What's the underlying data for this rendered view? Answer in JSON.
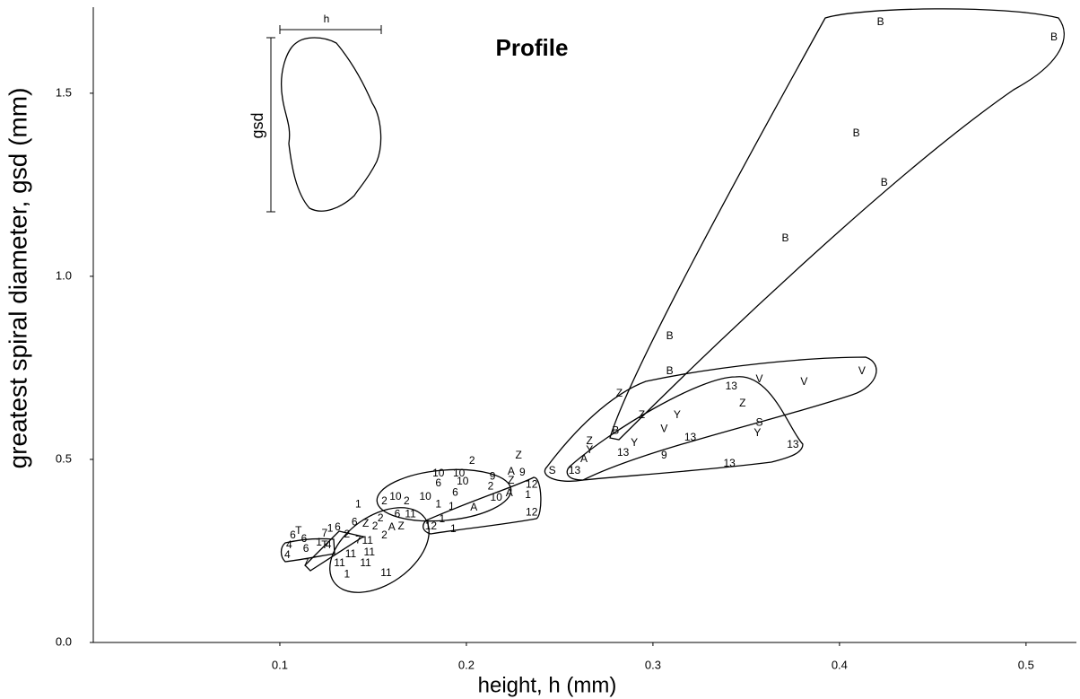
{
  "chart_data": {
    "type": "scatter",
    "title": "Profile",
    "x_label": "height, h (mm)",
    "y_label": "greatest spiral diameter, gsd (mm)",
    "inset_labels": [
      "h",
      "gsd"
    ],
    "color": "#000000",
    "xlim": [
      0,
      0.527
    ],
    "ylim": [
      0,
      1.735
    ],
    "xticks": [
      0.1,
      0.2,
      0.3,
      0.4,
      0.5
    ],
    "yticks": [
      {
        "value": 0,
        "label": "0.0"
      },
      0.5,
      {
        "value": 1,
        "label": "1.0"
      },
      1.5
    ],
    "point_labels": [
      "B",
      "B",
      "B",
      "B",
      "B",
      "B",
      "B",
      "B",
      "V",
      "V",
      "V",
      "V",
      "Y",
      "Y",
      "Y",
      "Y",
      "Z",
      "Z",
      "Z",
      "Z",
      "Z",
      "Z",
      "S",
      "S",
      "13",
      "13",
      "13",
      "13",
      "13",
      "13",
      "9",
      "9",
      "9",
      "A",
      "A",
      "A",
      "A",
      "A",
      "12",
      "12",
      "12",
      "2",
      "2",
      "2",
      "2",
      "2",
      "2",
      "2",
      "2",
      "10",
      "10",
      "10",
      "10",
      "10",
      "10",
      "6",
      "6",
      "6",
      "6",
      "6",
      "6",
      "6",
      "6",
      "1",
      "1",
      "1",
      "1",
      "1",
      "1",
      "1",
      "1",
      "1",
      "11",
      "11",
      "11",
      "11",
      "11",
      "11",
      "11",
      "Z",
      "Z",
      "7",
      "7",
      "7",
      "4",
      "4",
      "4",
      "T",
      "T"
    ],
    "x": [
      0.422,
      0.515,
      0.409,
      0.424,
      0.371,
      0.309,
      0.309,
      0.28,
      0.412,
      0.381,
      0.357,
      0.306,
      0.313,
      0.29,
      0.356,
      0.266,
      0.282,
      0.294,
      0.348,
      0.266,
      0.228,
      0.224,
      0.357,
      0.246,
      0.342,
      0.32,
      0.284,
      0.258,
      0.375,
      0.341,
      0.306,
      0.23,
      0.214,
      0.263,
      0.224,
      0.223,
      0.204,
      0.16,
      0.235,
      0.235,
      0.181,
      0.203,
      0.213,
      0.168,
      0.151,
      0.156,
      0.154,
      0.136,
      0.156,
      0.185,
      0.196,
      0.198,
      0.178,
      0.162,
      0.216,
      0.185,
      0.194,
      0.163,
      0.14,
      0.131,
      0.107,
      0.114,
      0.113,
      0.142,
      0.185,
      0.192,
      0.233,
      0.187,
      0.193,
      0.127,
      0.121,
      0.136,
      0.17,
      0.147,
      0.148,
      0.138,
      0.146,
      0.132,
      0.157,
      0.165,
      0.146,
      0.142,
      0.124,
      0.114,
      0.105,
      0.104,
      0.126,
      0.11,
      0.124
    ],
    "y": [
      1.694,
      1.652,
      1.39,
      1.255,
      1.103,
      0.836,
      0.74,
      0.578,
      0.74,
      0.711,
      0.718,
      0.583,
      0.62,
      0.544,
      0.571,
      0.525,
      0.679,
      0.62,
      0.652,
      0.549,
      0.51,
      0.441,
      0.6,
      0.468,
      0.699,
      0.559,
      0.517,
      0.468,
      0.539,
      0.488,
      0.51,
      0.463,
      0.453,
      0.5,
      0.466,
      0.407,
      0.368,
      0.314,
      0.431,
      0.355,
      0.316,
      0.495,
      0.426,
      0.385,
      0.316,
      0.292,
      0.338,
      0.294,
      0.385,
      0.461,
      0.461,
      0.439,
      0.397,
      0.397,
      0.395,
      0.434,
      0.409,
      0.35,
      0.328,
      0.314,
      0.292,
      0.255,
      0.282,
      0.377,
      0.377,
      0.37,
      0.402,
      0.336,
      0.309,
      0.311,
      0.272,
      0.186,
      0.35,
      0.277,
      0.245,
      0.24,
      0.216,
      0.216,
      0.189,
      0.316,
      0.324,
      0.279,
      0.297,
      0.216,
      0.265,
      0.238,
      0.265,
      0.304,
      0.265
    ]
  }
}
